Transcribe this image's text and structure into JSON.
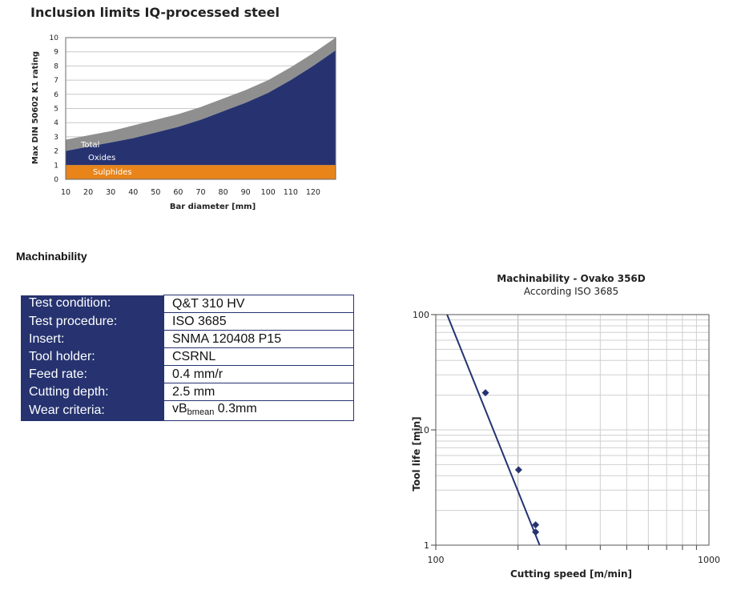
{
  "inclusion_title": "Inclusion limits IQ-processed steel",
  "machinability_heading": "Machinability",
  "params": [
    {
      "label": "Test condition:",
      "value": "Q&T 310 HV"
    },
    {
      "label": "Test procedure:",
      "value": "ISO 3685"
    },
    {
      "label": "Insert:",
      "value": "SNMA 120408 P15"
    },
    {
      "label": "Tool holder:",
      "value": "CSRNL"
    },
    {
      "label": "Feed rate:",
      "value": "0.4 mm/r"
    },
    {
      "label": "Cutting depth:",
      "value": "2.5 mm"
    },
    {
      "label": "Wear criteria:",
      "value_main": "vB",
      "value_sub": "bmean",
      "value_rest": " 0.3mm"
    }
  ],
  "chart_data": [
    {
      "type": "area",
      "xlabel": "Bar diameter [mm]",
      "ylabel": "Max DIN 50602 K1 rating",
      "xlim": [
        10,
        130
      ],
      "ylim": [
        0,
        10
      ],
      "xticks": [
        "10",
        "20",
        "30",
        "40",
        "50",
        "60",
        "70",
        "80",
        "90",
        "100",
        "110",
        "120"
      ],
      "yticks": [
        "0",
        "1",
        "2",
        "3",
        "4",
        "5",
        "6",
        "7",
        "8",
        "9",
        "10"
      ],
      "grid": true,
      "x": [
        10,
        20,
        30,
        40,
        50,
        60,
        70,
        80,
        90,
        100,
        110,
        120,
        130
      ],
      "series": [
        {
          "name": "Sulphides",
          "color": "#e8841a",
          "values": [
            1,
            1,
            1,
            1,
            1,
            1,
            1,
            1,
            1,
            1,
            1,
            1,
            1
          ]
        },
        {
          "name": "Oxides",
          "color": "#263370",
          "values": [
            2.0,
            2.3,
            2.6,
            2.9,
            3.3,
            3.7,
            4.2,
            4.8,
            5.4,
            6.1,
            7.0,
            8.0,
            9.1
          ]
        },
        {
          "name": "Total",
          "color": "#8f8f8f",
          "values": [
            2.8,
            3.1,
            3.4,
            3.8,
            4.2,
            4.6,
            5.1,
            5.7,
            6.3,
            7.0,
            7.9,
            8.9,
            10.0
          ]
        }
      ],
      "colors": {
        "sulphides_label": "#ffffff",
        "oxides_label": "#ffffff",
        "total_label": "#ffffff"
      }
    },
    {
      "type": "line",
      "title": "Machinability - Ovako 356D",
      "subtitle": "According ISO 3685",
      "xlabel": "Cutting speed [m/min]",
      "ylabel": "Tool life [min]",
      "xscale": "log",
      "yscale": "log",
      "xlim": [
        100,
        1000
      ],
      "ylim": [
        1,
        100
      ],
      "xticks": [
        "100",
        "1000"
      ],
      "yticks": [
        "1",
        "10",
        "100"
      ],
      "grid": true,
      "line_color": "#263370",
      "line": {
        "x": [
          110,
          240
        ],
        "y": [
          100,
          1
        ]
      },
      "points": [
        {
          "x": 152,
          "y": 21
        },
        {
          "x": 201,
          "y": 4.5
        },
        {
          "x": 232,
          "y": 1.5
        },
        {
          "x": 232,
          "y": 1.3
        }
      ]
    }
  ]
}
